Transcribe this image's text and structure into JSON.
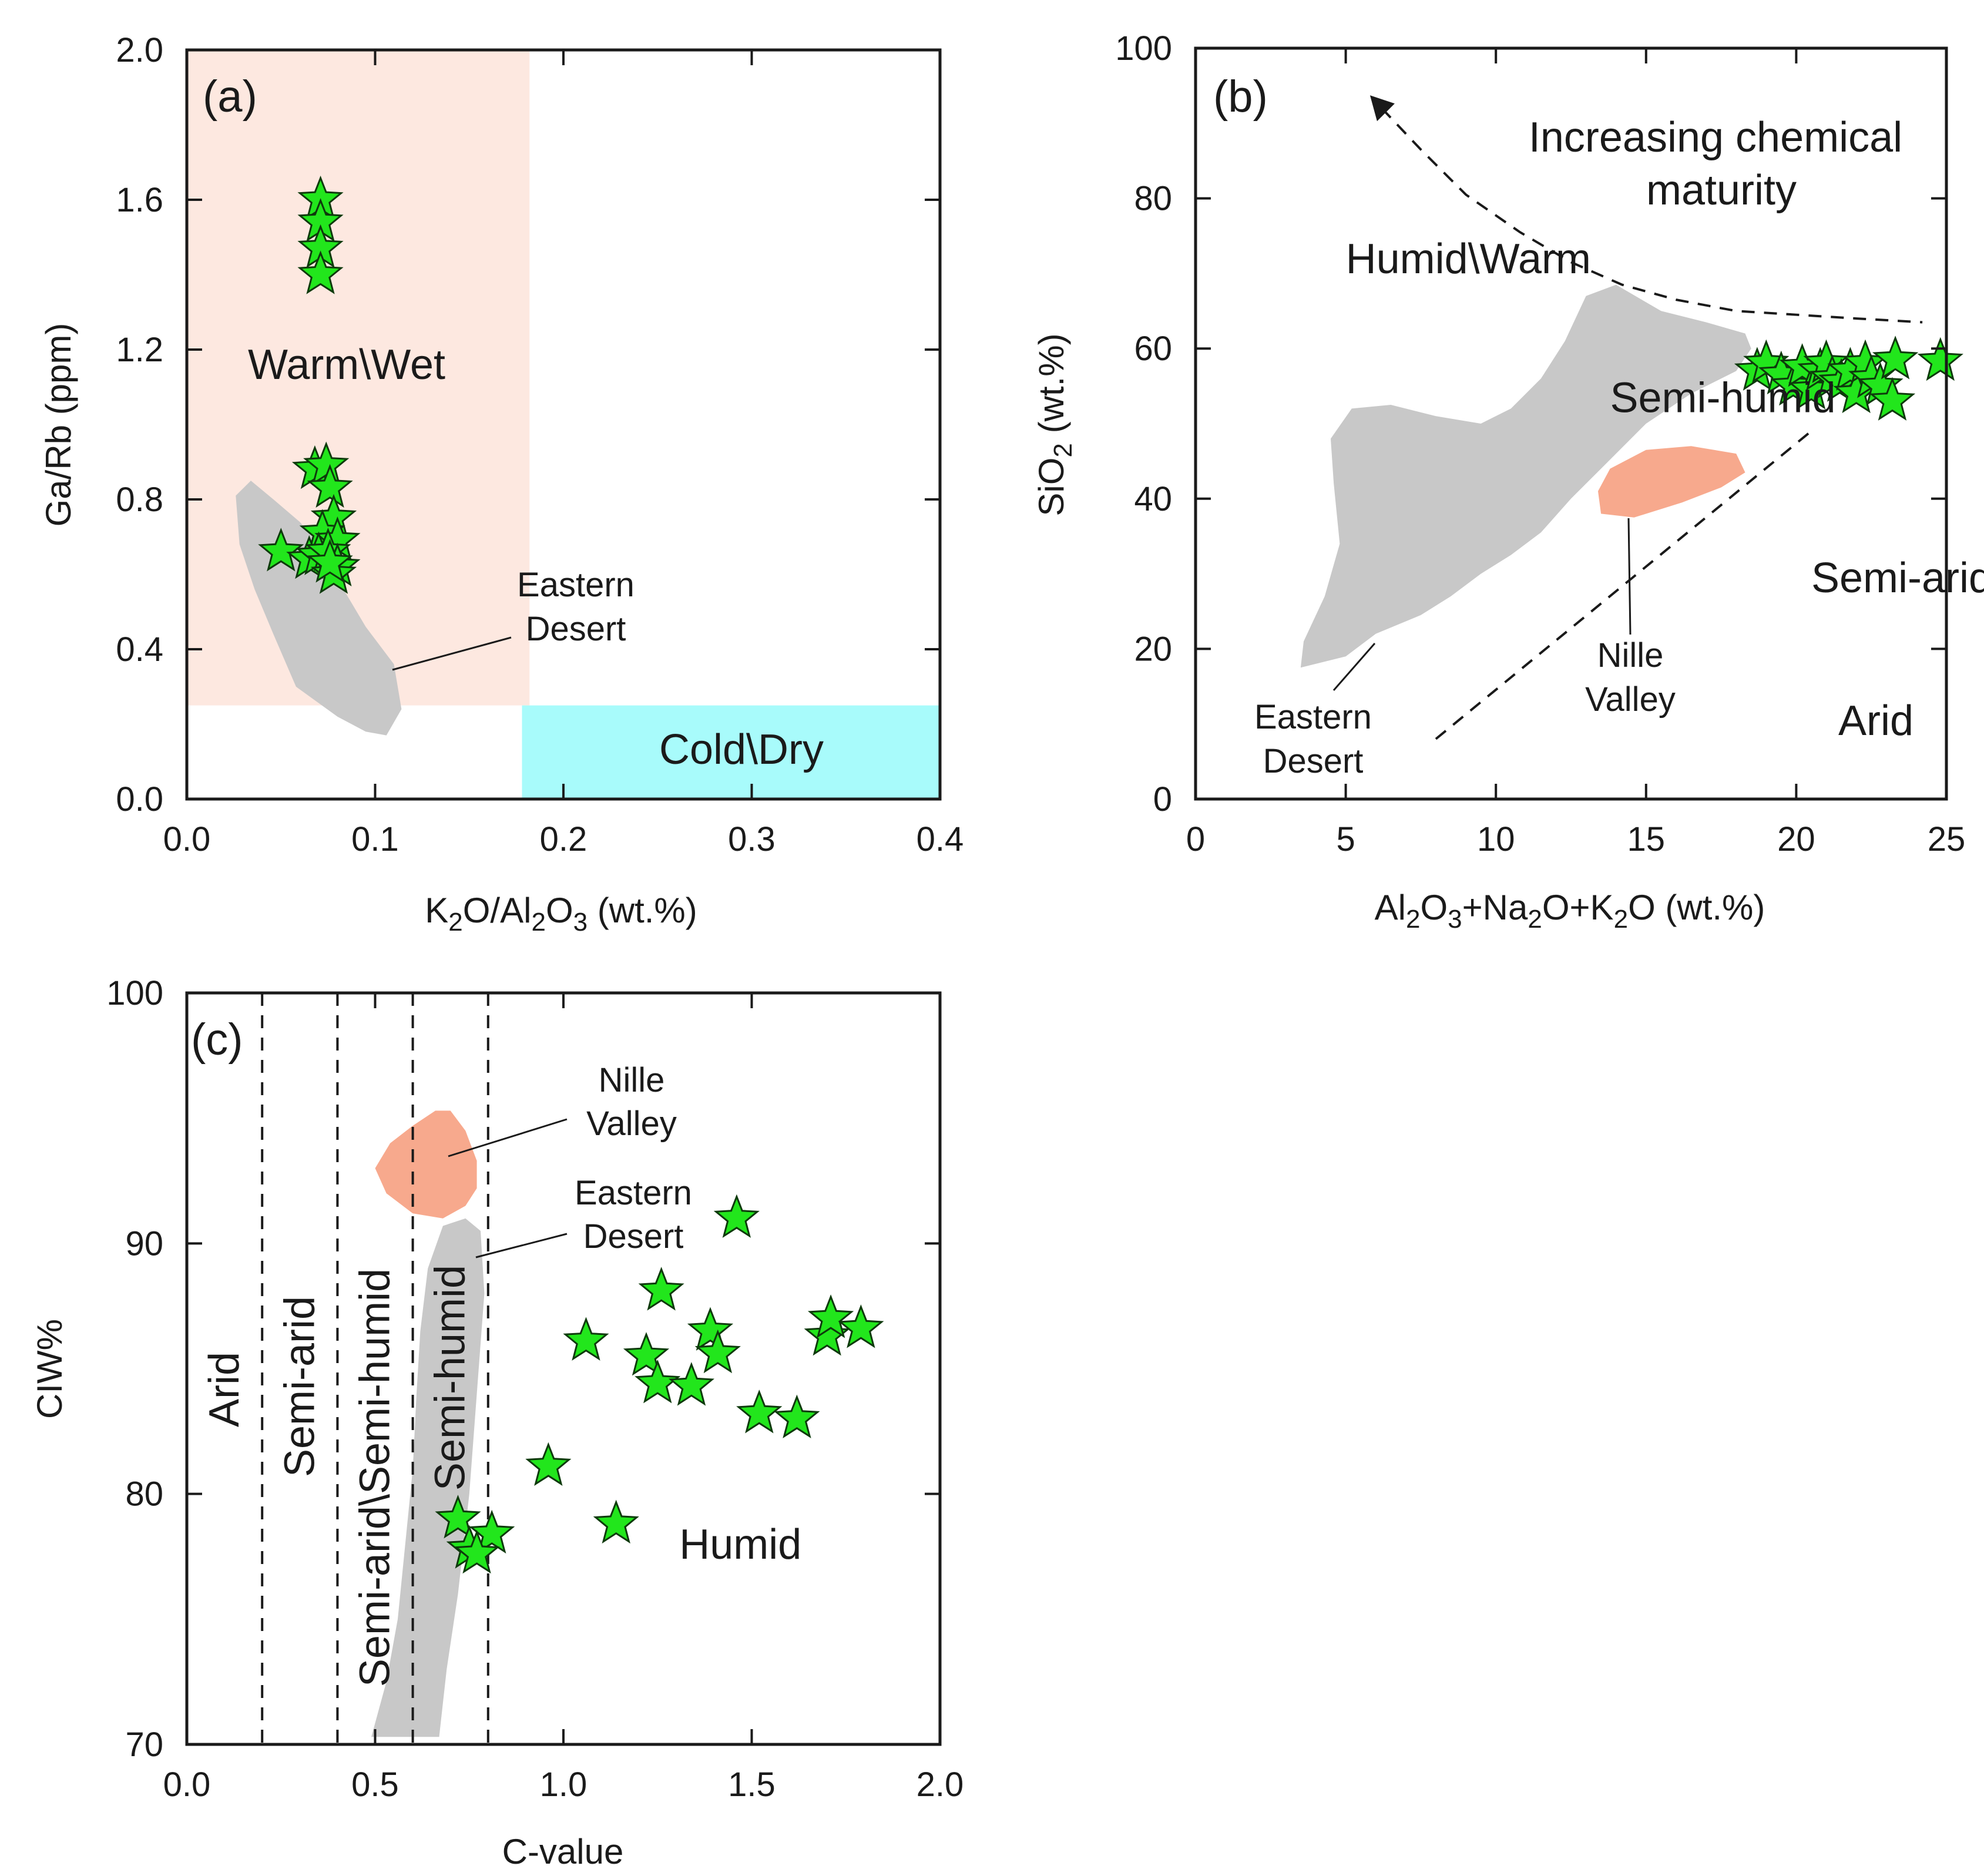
{
  "colors": {
    "warm_wet_zone": "#fde8e0",
    "cold_dry_zone": "#a8fbfb",
    "eastern_desert": "#c8c8c8",
    "nille_valley": "#f7a98d",
    "sample_star": "#22e61c"
  },
  "chart_data": [
    {
      "id": "a",
      "type": "scatter",
      "panel_label": "(a)",
      "xlabel": "K2O/Al2O3  (wt.%)",
      "ylabel": "Ga/Rb (ppm)",
      "xlim": [
        0,
        0.4
      ],
      "ylim": [
        0,
        2.0
      ],
      "xticks": [
        0.0,
        0.1,
        0.2,
        0.3,
        0.4
      ],
      "yticks": [
        0.0,
        0.4,
        0.8,
        1.2,
        1.6,
        2.0
      ],
      "xtick_labels": [
        "0.0",
        "0.1",
        "0.2",
        "0.3",
        "0.4"
      ],
      "ytick_labels": [
        "0.0",
        "0.4",
        "0.8",
        "1.2",
        "1.6",
        "2.0"
      ],
      "zones": [
        {
          "name": "Warm\\Wet",
          "x": [
            0,
            0.182
          ],
          "y": [
            0.25,
            2.0
          ]
        },
        {
          "name": "Cold\\Dry",
          "x": [
            0.178,
            0.4
          ],
          "y": [
            0,
            0.25
          ]
        }
      ],
      "fields": [
        {
          "name": "Eastern Desert",
          "lines": [
            "Eastern",
            "Desert"
          ],
          "polygon": [
            [
              0.026,
              0.81
            ],
            [
              0.034,
              0.85
            ],
            [
              0.046,
              0.8
            ],
            [
              0.06,
              0.74
            ],
            [
              0.07,
              0.68
            ],
            [
              0.082,
              0.57
            ],
            [
              0.095,
              0.46
            ],
            [
              0.11,
              0.36
            ],
            [
              0.114,
              0.24
            ],
            [
              0.106,
              0.17
            ],
            [
              0.095,
              0.18
            ],
            [
              0.08,
              0.22
            ],
            [
              0.058,
              0.3
            ],
            [
              0.046,
              0.44
            ],
            [
              0.036,
              0.56
            ],
            [
              0.028,
              0.68
            ]
          ]
        }
      ],
      "points": {
        "x": [
          0.071,
          0.071,
          0.071,
          0.071,
          0.068,
          0.074,
          0.076,
          0.078,
          0.072,
          0.08,
          0.05,
          0.065,
          0.07,
          0.075,
          0.08,
          0.078,
          0.076
        ],
        "y": [
          1.6,
          1.54,
          1.47,
          1.4,
          0.88,
          0.89,
          0.83,
          0.75,
          0.71,
          0.69,
          0.66,
          0.64,
          0.65,
          0.66,
          0.62,
          0.6,
          0.63
        ]
      }
    },
    {
      "id": "b",
      "type": "scatter",
      "panel_label": "(b)",
      "xlabel": "Al2O3+Na2O+K2O (wt.%)",
      "ylabel": "SiO2 (wt.%)",
      "xlim": [
        0,
        25
      ],
      "ylim": [
        0,
        100
      ],
      "xticks": [
        0,
        5,
        10,
        15,
        20,
        25
      ],
      "yticks": [
        0,
        20,
        40,
        60,
        80,
        100
      ],
      "xtick_labels": [
        "0",
        "5",
        "10",
        "15",
        "20",
        "25"
      ],
      "ytick_labels": [
        "0",
        "20",
        "40",
        "60",
        "80",
        "100"
      ],
      "fields": [
        {
          "name": "Eastern Desert",
          "lines": [
            "Eastern",
            "Desert"
          ],
          "polygon": [
            [
              3.5,
              17.5
            ],
            [
              5,
              19
            ],
            [
              6,
              22
            ],
            [
              7.5,
              24.5
            ],
            [
              8.5,
              27
            ],
            [
              9.5,
              30
            ],
            [
              10.5,
              32.5
            ],
            [
              11.5,
              35.5
            ],
            [
              12.5,
              40
            ],
            [
              13.5,
              44
            ],
            [
              15,
              50
            ],
            [
              16.5,
              54
            ],
            [
              18,
              57
            ],
            [
              18.5,
              60
            ],
            [
              18.3,
              62
            ],
            [
              17,
              63.5
            ],
            [
              15.5,
              65
            ],
            [
              14,
              68.5
            ],
            [
              13,
              67
            ],
            [
              12.3,
              61
            ],
            [
              11.5,
              56
            ],
            [
              10.5,
              52
            ],
            [
              9.5,
              50
            ],
            [
              8,
              51
            ],
            [
              6.5,
              52.5
            ],
            [
              5.2,
              52
            ],
            [
              4.5,
              48
            ],
            [
              4.6,
              42
            ],
            [
              4.8,
              34
            ],
            [
              4.3,
              27
            ],
            [
              3.6,
              21
            ]
          ]
        },
        {
          "name": "Nille Valley",
          "lines": [
            "Nille",
            "Valley"
          ],
          "polygon": [
            [
              13.4,
              41
            ],
            [
              13.8,
              44
            ],
            [
              15,
              46.5
            ],
            [
              16.5,
              47
            ],
            [
              18,
              46
            ],
            [
              18.3,
              43.5
            ],
            [
              17.5,
              41.5
            ],
            [
              16.2,
              39.5
            ],
            [
              14.6,
              37.5
            ],
            [
              13.5,
              38
            ]
          ]
        }
      ],
      "dashed_lines": [
        {
          "name": "semi-arid-arid-divider",
          "x": [
            8,
            20.5
          ],
          "y": [
            8,
            49
          ]
        },
        {
          "name": "maturity-trend-arrow",
          "x": [
            6.2,
            7.5,
            9,
            10.8,
            12.5,
            14.2,
            16,
            18,
            20,
            22,
            24.2
          ],
          "y": [
            92,
            86.5,
            80.5,
            75.5,
            71.5,
            68.5,
            66.5,
            65,
            64.5,
            64,
            63.5
          ]
        }
      ],
      "annotations": [
        {
          "text": "Humid\\Warm",
          "x": 5,
          "y": 72
        },
        {
          "text": "Semi-humid",
          "x": 13.8,
          "y": 53.5
        },
        {
          "text": "Semi-arid",
          "x": 20.5,
          "y": 29.5
        },
        {
          "text": "Arid",
          "x": 21.4,
          "y": 10.5
        }
      ],
      "maturity_label": [
        "Increasing chemical",
        "maturity"
      ],
      "points": {
        "x": [
          18.7,
          19.0,
          19.5,
          19.9,
          20.2,
          20.5,
          20.8,
          21.0,
          21.2,
          21.5,
          21.8,
          22.0,
          22.3,
          22.5,
          22.8,
          23.2,
          23.3,
          24.8
        ],
        "y": [
          57,
          58,
          56.5,
          55,
          57.5,
          54.5,
          57,
          58,
          56,
          55.5,
          57,
          54,
          58,
          56,
          55,
          53,
          58.5,
          58.3
        ]
      }
    },
    {
      "id": "c",
      "type": "scatter",
      "panel_label": "(c)",
      "xlabel": "C-value",
      "ylabel": "CIW%",
      "xlim": [
        0,
        2.0
      ],
      "ylim": [
        70,
        100
      ],
      "xticks": [
        0.0,
        0.5,
        1.0,
        1.5,
        2.0
      ],
      "yticks": [
        70,
        80,
        90,
        100
      ],
      "xtick_labels": [
        "0.0",
        "0.5",
        "1.0",
        "1.5",
        "2.0"
      ],
      "ytick_labels": [
        "70",
        "80",
        "90",
        "100"
      ],
      "vertical_dividers": [
        0.2,
        0.4,
        0.6,
        0.8
      ],
      "zone_labels": [
        {
          "text": "Arid",
          "x": 0.1
        },
        {
          "text": "Semi-arid",
          "x": 0.3
        },
        {
          "text": "Semi-arid\\Semi-humid",
          "x": 0.5
        },
        {
          "text": "Semi-humid",
          "x": 0.7
        },
        {
          "text": "Humid",
          "x": 1.47,
          "y": 78.0
        }
      ],
      "fields": [
        {
          "name": "Nille Valley",
          "lines": [
            "Nille",
            "Valley"
          ],
          "polygon": [
            [
              0.5,
              93.0
            ],
            [
              0.54,
              94.0
            ],
            [
              0.6,
              94.7
            ],
            [
              0.66,
              95.3
            ],
            [
              0.7,
              95.3
            ],
            [
              0.74,
              94.5
            ],
            [
              0.77,
              93.3
            ],
            [
              0.77,
              92.2
            ],
            [
              0.74,
              91.5
            ],
            [
              0.68,
              91.0
            ],
            [
              0.6,
              91.2
            ],
            [
              0.53,
              92.0
            ]
          ]
        },
        {
          "name": "Eastern Desert",
          "lines": [
            "Eastern",
            "Desert"
          ],
          "polygon": [
            [
              0.49,
              70.3
            ],
            [
              0.53,
              72.5
            ],
            [
              0.56,
              75
            ],
            [
              0.58,
              78
            ],
            [
              0.6,
              81
            ],
            [
              0.61,
              84
            ],
            [
              0.62,
              86.5
            ],
            [
              0.64,
              89
            ],
            [
              0.68,
              90.7
            ],
            [
              0.74,
              91
            ],
            [
              0.78,
              90.5
            ],
            [
              0.79,
              88
            ],
            [
              0.77,
              84
            ],
            [
              0.75,
              80
            ],
            [
              0.72,
              76
            ],
            [
              0.69,
              73
            ],
            [
              0.67,
              70.3
            ]
          ]
        }
      ],
      "points": {
        "x": [
          1.46,
          1.26,
          1.06,
          1.22,
          1.25,
          1.34,
          1.39,
          1.41,
          1.52,
          1.62,
          1.7,
          1.71,
          1.79,
          0.96,
          1.14,
          0.72,
          0.75,
          0.81,
          0.77
        ],
        "y": [
          91.0,
          88.1,
          86.1,
          85.5,
          84.4,
          84.3,
          86.5,
          85.6,
          83.2,
          83.0,
          86.3,
          87.0,
          86.6,
          81.1,
          78.8,
          79.0,
          77.8,
          78.4,
          77.6
        ]
      }
    }
  ]
}
